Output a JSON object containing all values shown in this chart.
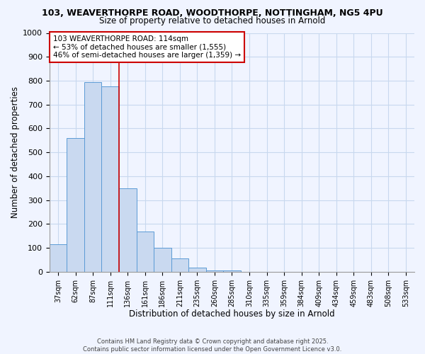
{
  "title_line1": "103, WEAVERTHORPE ROAD, WOODTHORPE, NOTTINGHAM, NG5 4PU",
  "title_line2": "Size of property relative to detached houses in Arnold",
  "xlabel": "Distribution of detached houses by size in Arnold",
  "ylabel": "Number of detached properties",
  "categories": [
    "37sqm",
    "62sqm",
    "87sqm",
    "111sqm",
    "136sqm",
    "161sqm",
    "186sqm",
    "211sqm",
    "235sqm",
    "260sqm",
    "285sqm",
    "310sqm",
    "335sqm",
    "359sqm",
    "384sqm",
    "409sqm",
    "434sqm",
    "459sqm",
    "483sqm",
    "508sqm",
    "533sqm"
  ],
  "values": [
    115,
    560,
    795,
    775,
    350,
    168,
    100,
    55,
    18,
    5,
    5,
    0,
    0,
    0,
    0,
    0,
    0,
    0,
    0,
    0,
    0
  ],
  "bar_color": "#c9d9f0",
  "bar_edge_color": "#5b9bd5",
  "annotation_box_color": "#ffffff",
  "annotation_border_color": "#cc0000",
  "annotation_line1": "103 WEAVERTHORPE ROAD: 114sqm",
  "annotation_line2": "← 53% of detached houses are smaller (1,555)",
  "annotation_line3": "46% of semi-detached houses are larger (1,359) →",
  "property_bar_index": 3,
  "property_line_color": "#cc0000",
  "ylim": [
    0,
    1000
  ],
  "yticks": [
    0,
    100,
    200,
    300,
    400,
    500,
    600,
    700,
    800,
    900,
    1000
  ],
  "footnote1": "Contains HM Land Registry data © Crown copyright and database right 2025.",
  "footnote2": "Contains public sector information licensed under the Open Government Licence v3.0.",
  "bg_color": "#f0f4ff",
  "plot_bg_color": "#f0f4ff",
  "grid_color": "#c8d8ee"
}
